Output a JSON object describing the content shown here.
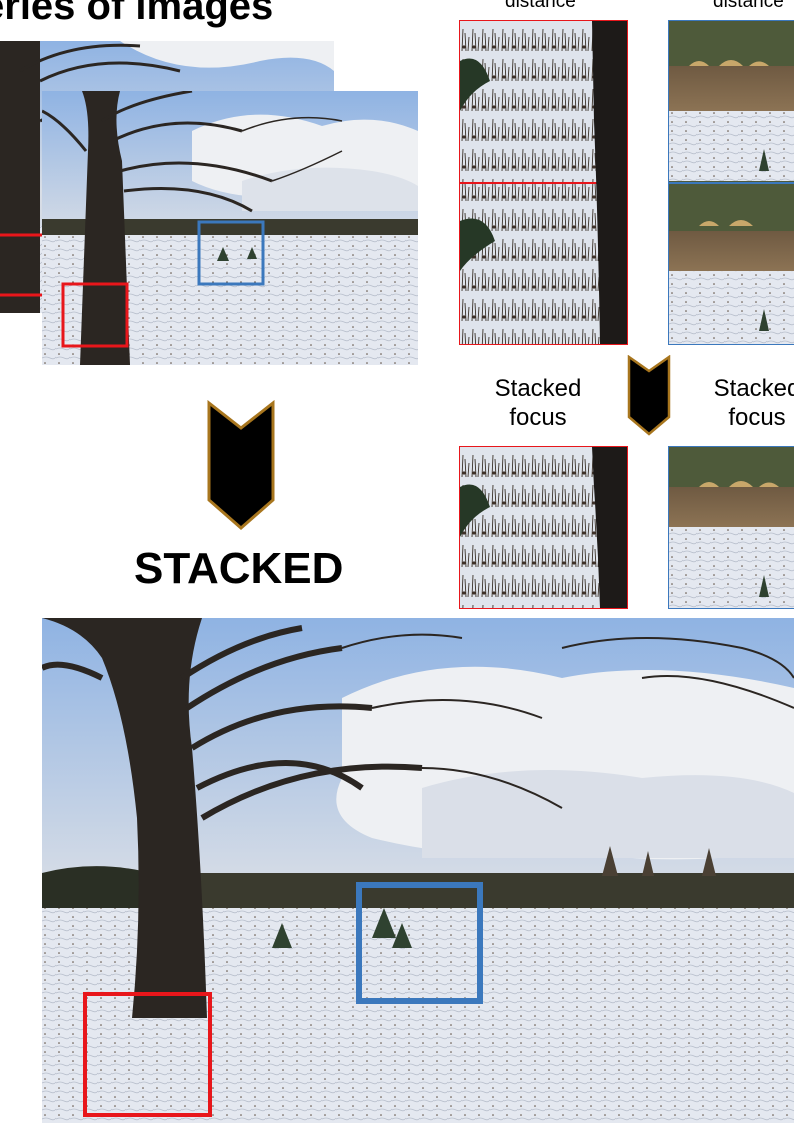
{
  "title": "eries of images",
  "top_labels": [
    "distance",
    "distance"
  ],
  "stacked_labels": [
    {
      "line1": "Stacked",
      "line2": "focus"
    },
    {
      "line1": "Stacked",
      "line2": "focus"
    }
  ],
  "stacked_heading": "STACKED",
  "colors": {
    "red_box": "#e8161b",
    "blue_box": "#3b78bd",
    "chevron_fill": "#000000",
    "chevron_stroke": "#a8761e",
    "sky": "#5f8fcf",
    "cloud": "#e6e9ee",
    "snow": "#e8ecf3",
    "tree": "#2b2622"
  },
  "icons": {
    "arrow_large": "chevron-down-icon",
    "arrow_small": "chevron-down-icon"
  }
}
